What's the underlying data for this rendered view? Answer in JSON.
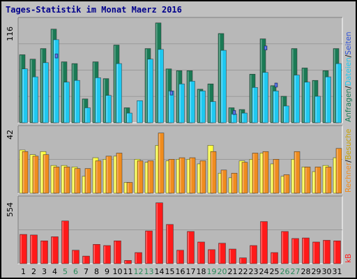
{
  "colors": {
    "background": "#c0c0c0",
    "plot_bg": "#b8b8b8",
    "anfragen": "#1a7a55",
    "dateien": "#1ec8f0",
    "seiten": "#2b4fd8",
    "besuche": "#ffff40",
    "rechner": "#f08c1e",
    "kb": "#ff1a1a",
    "title": "#00008b",
    "weekend_label": "#2b8a5a"
  },
  "chart_data": [
    {
      "type": "bar",
      "title": "Tages-Statistik im Monat Maerz 2016",
      "ymax_label": "116",
      "right_labels": [
        "Anfragen",
        "/",
        "Dateien",
        "/",
        "Seiten"
      ],
      "categories": [
        "1",
        "2",
        "3",
        "4",
        "5",
        "6",
        "7",
        "8",
        "9",
        "10",
        "11",
        "12",
        "13",
        "14",
        "15",
        "16",
        "17",
        "18",
        "19",
        "20",
        "21",
        "22",
        "23",
        "24",
        "25",
        "26",
        "27",
        "28",
        "29",
        "30",
        "31"
      ],
      "series": [
        {
          "name": "Anfragen",
          "values": [
            77,
            72,
            84,
            106,
            69,
            67,
            27,
            69,
            50,
            88,
            17,
            0,
            84,
            113,
            61,
            59,
            59,
            38,
            44,
            101,
            17,
            15,
            55,
            95,
            42,
            30,
            84,
            62,
            48,
            59,
            84
          ]
        },
        {
          "name": "Dateien",
          "values": [
            61,
            52,
            68,
            94,
            46,
            48,
            17,
            51,
            31,
            67,
            11,
            25,
            72,
            83,
            36,
            44,
            47,
            36,
            24,
            82,
            10,
            11,
            40,
            57,
            36,
            19,
            54,
            46,
            30,
            52,
            67
          ]
        },
        {
          "name": "Seiten",
          "values": [
            0,
            0,
            0,
            78,
            0,
            0,
            0,
            0,
            0,
            0,
            0,
            0,
            0,
            0,
            36,
            0,
            0,
            0,
            0,
            0,
            14,
            0,
            0,
            87,
            45,
            0,
            0,
            0,
            0,
            0,
            0
          ]
        }
      ]
    },
    {
      "type": "bar",
      "ymax_label": "42",
      "right_labels": [
        "Rechner",
        "/",
        "Besuche"
      ],
      "categories": [
        "1",
        "2",
        "3",
        "4",
        "5",
        "6",
        "7",
        "8",
        "9",
        "10",
        "11",
        "12",
        "13",
        "14",
        "15",
        "16",
        "17",
        "18",
        "19",
        "20",
        "21",
        "22",
        "23",
        "24",
        "25",
        "26",
        "27",
        "28",
        "29",
        "30",
        "31"
      ],
      "series": [
        {
          "name": "Besuche",
          "values": [
            28,
            25,
            27,
            18,
            18,
            17,
            11,
            23,
            22,
            24,
            7,
            22,
            20,
            31,
            21,
            22,
            22,
            19,
            31,
            13,
            10,
            21,
            22,
            26,
            19,
            11,
            22,
            17,
            14,
            18,
            23
          ]
        },
        {
          "name": "Rechner",
          "values": [
            27,
            24,
            25,
            17,
            17,
            16,
            16,
            21,
            24,
            26,
            7,
            21,
            21,
            39,
            22,
            23,
            23,
            21,
            27,
            15,
            13,
            20,
            26,
            27,
            22,
            12,
            27,
            17,
            17,
            17,
            29
          ]
        }
      ]
    },
    {
      "type": "bar",
      "ymax_label": "554",
      "right_labels": [
        "kB"
      ],
      "categories": [
        "1",
        "2",
        "3",
        "4",
        "5",
        "6",
        "7",
        "8",
        "9",
        "10",
        "11",
        "12",
        "13",
        "14",
        "15",
        "16",
        "17",
        "18",
        "19",
        "20",
        "21",
        "22",
        "23",
        "24",
        "25",
        "26",
        "27",
        "28",
        "29",
        "30",
        "31"
      ],
      "series": [
        {
          "name": "kB",
          "values": [
            250,
            245,
            195,
            230,
            365,
            115,
            65,
            165,
            155,
            195,
            28,
            95,
            280,
            520,
            335,
            115,
            275,
            185,
            120,
            175,
            125,
            50,
            155,
            360,
            95,
            275,
            215,
            220,
            185,
            200,
            195
          ]
        }
      ]
    }
  ]
}
